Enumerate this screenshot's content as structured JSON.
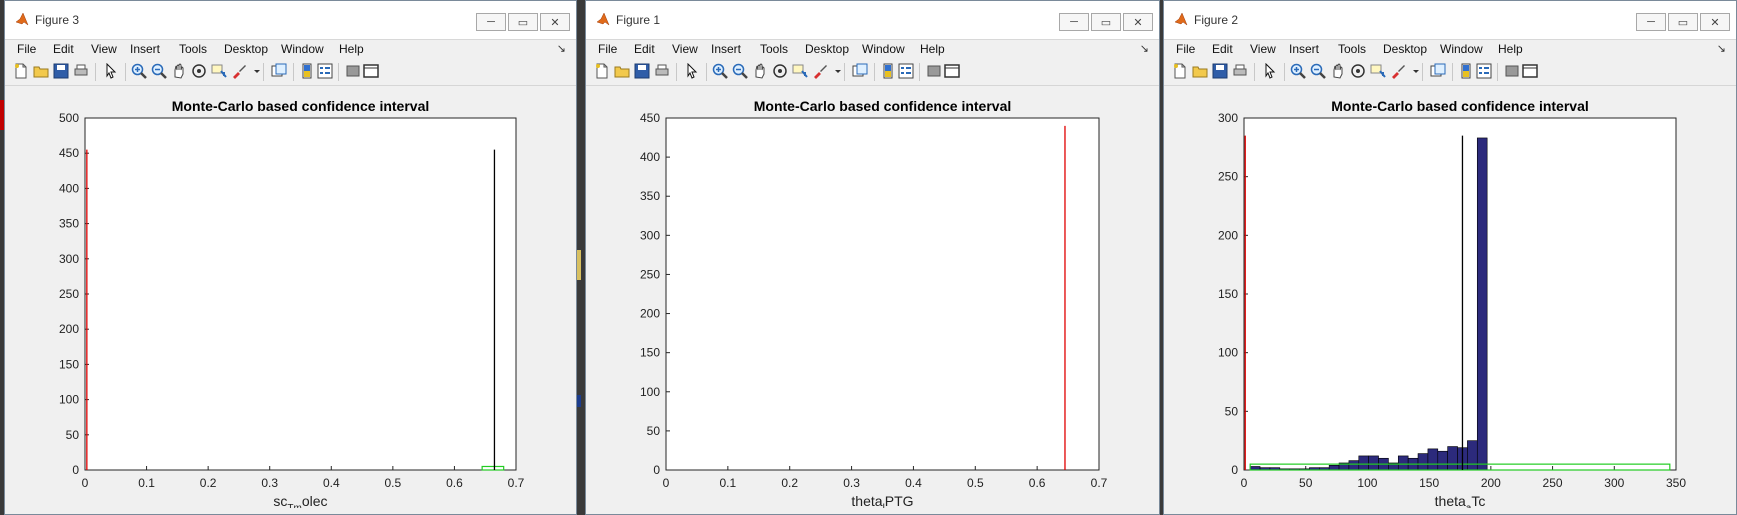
{
  "menu_items": [
    "File",
    "Edit",
    "View",
    "Insert",
    "Tools",
    "Desktop",
    "Window",
    "Help"
  ],
  "windows": [
    {
      "title": "Figure 3",
      "chart_data": {
        "type": "bar",
        "title": "Monte-Carlo based confidence interval",
        "xlabel": "sc_{Tm}olec",
        "xlabel_main": "sc",
        "xlabel_sub": "Tm",
        "xlabel_tail": "olec",
        "xlim": [
          0,
          0.7
        ],
        "ylim": [
          0,
          500
        ],
        "xticks": [
          "0",
          "0.1",
          "0.2",
          "0.3",
          "0.4",
          "0.5",
          "0.6",
          "0.7"
        ],
        "yticks": [
          "0",
          "50",
          "100",
          "150",
          "200",
          "250",
          "300",
          "350",
          "400",
          "450",
          "500"
        ],
        "red_line_x": 0.003,
        "red_line_y": 455,
        "black_line_x": 0.665,
        "black_line_y": 455,
        "green_box": {
          "x0": 0.645,
          "x1": 0.68,
          "y": 5
        },
        "bins": []
      }
    },
    {
      "title": "Figure 1",
      "chart_data": {
        "type": "bar",
        "title": "Monte-Carlo based confidence interval",
        "xlabel": "theta_{l}PTG",
        "xlabel_main": "theta",
        "xlabel_sub": "l",
        "xlabel_tail": "PTG",
        "xlim": [
          0,
          0.7
        ],
        "ylim": [
          0,
          450
        ],
        "xticks": [
          "0",
          "0.1",
          "0.2",
          "0.3",
          "0.4",
          "0.5",
          "0.6",
          "0.7"
        ],
        "yticks": [
          "0",
          "50",
          "100",
          "150",
          "200",
          "250",
          "300",
          "350",
          "400",
          "450"
        ],
        "red_line_x": 0.645,
        "red_line_y": 440,
        "bins": []
      }
    },
    {
      "title": "Figure 2",
      "chart_data": {
        "type": "bar",
        "title": "Monte-Carlo based confidence interval",
        "xlabel": "theta_{a}Tc",
        "xlabel_main": "theta",
        "xlabel_sub": "a",
        "xlabel_tail": "Tc",
        "xlim": [
          0,
          350
        ],
        "ylim": [
          0,
          300
        ],
        "xticks": [
          "0",
          "50",
          "100",
          "150",
          "200",
          "250",
          "300",
          "350"
        ],
        "yticks": [
          "0",
          "50",
          "100",
          "150",
          "200",
          "250",
          "300"
        ],
        "red_line_x": 1,
        "red_line_y": 285,
        "black_line_x": 177,
        "black_line_y": 285,
        "green_box": {
          "x0": 5,
          "x1": 345,
          "y": 5
        },
        "bin_color": "#2c2a7c",
        "bins": [
          {
            "x0": 5,
            "x1": 13,
            "v": 3
          },
          {
            "x0": 13,
            "x1": 21,
            "v": 2
          },
          {
            "x0": 21,
            "x1": 29,
            "v": 2
          },
          {
            "x0": 29,
            "x1": 37,
            "v": 1
          },
          {
            "x0": 37,
            "x1": 45,
            "v": 1
          },
          {
            "x0": 45,
            "x1": 53,
            "v": 1
          },
          {
            "x0": 53,
            "x1": 61,
            "v": 2
          },
          {
            "x0": 61,
            "x1": 69,
            "v": 2
          },
          {
            "x0": 69,
            "x1": 77,
            "v": 4
          },
          {
            "x0": 77,
            "x1": 85,
            "v": 6
          },
          {
            "x0": 85,
            "x1": 93,
            "v": 8
          },
          {
            "x0": 93,
            "x1": 101,
            "v": 12
          },
          {
            "x0": 101,
            "x1": 109,
            "v": 12
          },
          {
            "x0": 109,
            "x1": 117,
            "v": 10
          },
          {
            "x0": 117,
            "x1": 125,
            "v": 6
          },
          {
            "x0": 125,
            "x1": 133,
            "v": 12
          },
          {
            "x0": 133,
            "x1": 141,
            "v": 10
          },
          {
            "x0": 141,
            "x1": 149,
            "v": 14
          },
          {
            "x0": 149,
            "x1": 157,
            "v": 18
          },
          {
            "x0": 157,
            "x1": 165,
            "v": 16
          },
          {
            "x0": 165,
            "x1": 173,
            "v": 20
          },
          {
            "x0": 173,
            "x1": 181,
            "v": 19
          },
          {
            "x0": 181,
            "x1": 189,
            "v": 25
          },
          {
            "x0": 189,
            "x1": 197,
            "v": 283
          }
        ]
      }
    }
  ]
}
